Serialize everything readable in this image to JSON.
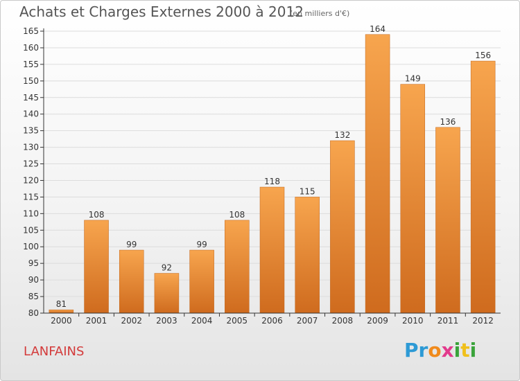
{
  "title": "Achats et Charges Externes 2000 à 2012",
  "subtitle": "(en milliers d'€)",
  "commune": "LANFAINS",
  "logo": {
    "text": "Proxiti",
    "letters": [
      {
        "ch": "P",
        "color": "#2d9ad5"
      },
      {
        "ch": "r",
        "color": "#2d9ad5"
      },
      {
        "ch": "o",
        "color": "#f08a1c"
      },
      {
        "ch": "x",
        "color": "#e23a8c"
      },
      {
        "ch": "i",
        "color": "#3aa33a"
      },
      {
        "ch": "t",
        "color": "#f0c01c"
      },
      {
        "ch": "i",
        "color": "#3aa33a"
      }
    ]
  },
  "colors": {
    "bar_top": "#f7a54e",
    "bar_bottom": "#cf6b1e",
    "axis": "#333333",
    "grid": "#dcdcdc"
  },
  "chart_data": {
    "type": "bar",
    "title": "Achats et Charges Externes 2000 à 2012",
    "subtitle": "(en milliers d'€)",
    "categories": [
      "2000",
      "2001",
      "2002",
      "2003",
      "2004",
      "2005",
      "2006",
      "2007",
      "2008",
      "2009",
      "2010",
      "2011",
      "2012"
    ],
    "values": [
      81,
      108,
      99,
      92,
      99,
      108,
      118,
      115,
      132,
      164,
      149,
      136,
      156
    ],
    "ylim": [
      80,
      165
    ],
    "yticks": [
      80,
      85,
      90,
      95,
      100,
      105,
      110,
      115,
      120,
      125,
      130,
      135,
      140,
      145,
      150,
      155,
      160,
      165
    ],
    "grid": true,
    "data_labels": true
  }
}
